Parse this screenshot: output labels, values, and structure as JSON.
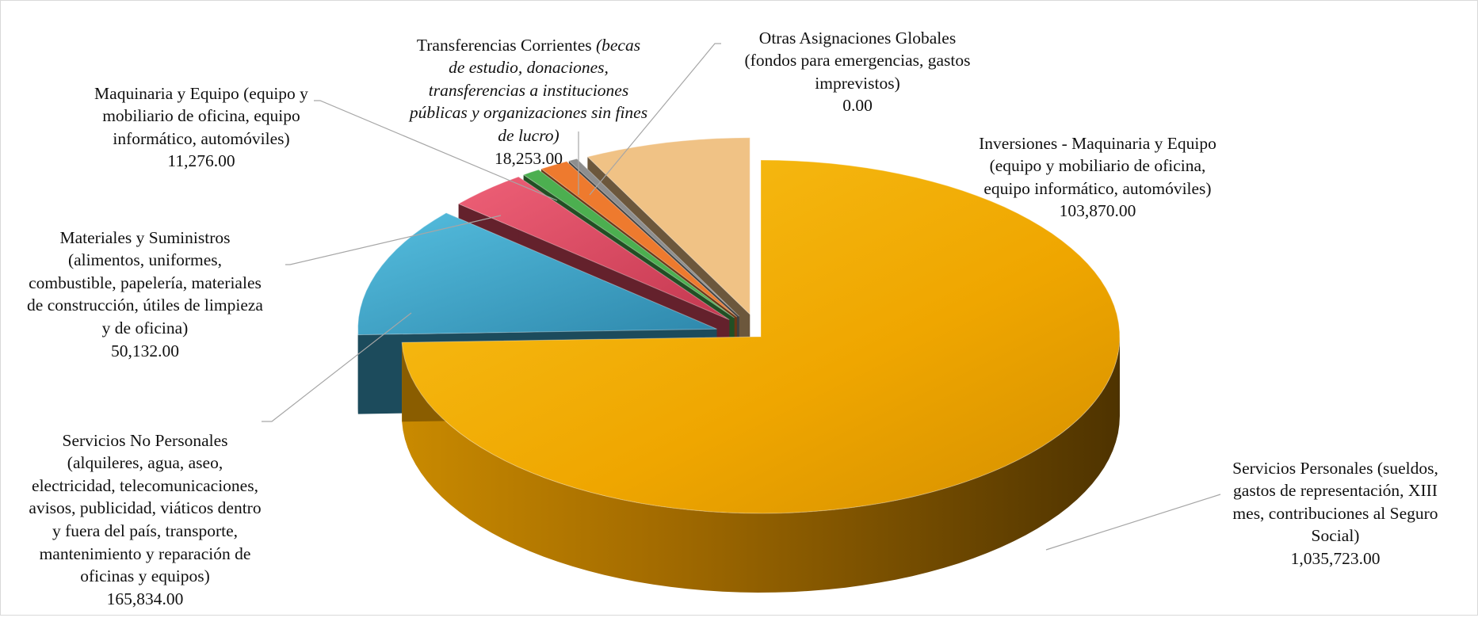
{
  "chart_data": {
    "type": "pie",
    "title": "",
    "exploded": true,
    "three_d": true,
    "legend": "none",
    "slices": [
      {
        "name": "Servicios Personales (sueldos, gastos de representación, XIII mes, contribuciones al Seguro Social)",
        "value_label": "1,035,723.00",
        "value": 1035723,
        "color": "#F2AE00"
      },
      {
        "name": "Servicios No Personales (alquileres, agua, aseo, electricidad, telecomunicaciones, avisos, publicidad, viáticos dentro y fuera del país, transporte, mantenimiento y reparación de oficinas y equipos)",
        "value_label": "165,834.00",
        "value": 165834,
        "color": "#3FA7CC"
      },
      {
        "name": "Materiales y Suministros (alimentos, uniformes, combustible, papelería, materiales de construcción, útiles de limpieza y de oficina)",
        "value_label": "50,132.00",
        "value": 50132,
        "color": "#DE4A62"
      },
      {
        "name": "Maquinaria y Equipo (equipo y mobiliario de oficina, equipo informático, automóviles)",
        "value_label": "11,276.00",
        "value": 11276,
        "color": "#4CAF50"
      },
      {
        "name": "Transferencias Corrientes (becas de estudio, donaciones, transferencias a instituciones públicas y organizaciones sin fines de lucro)",
        "value_label": "18,253.00",
        "value": 18253,
        "color": "#EE7A2E"
      },
      {
        "name": "Otras Asignaciones Globales (fondos para emergencias, gastos imprevistos)",
        "value_label": "0.00",
        "value": 0,
        "color": "#8E8E8E"
      },
      {
        "name": "Inversiones - Maquinaria y Equipo (equipo y mobiliario de oficina, equipo informático, automóviles)",
        "value_label": "103,870.00",
        "value": 103870,
        "color": "#F0C285"
      }
    ]
  },
  "labels": {
    "servicios_personales": {
      "text": "Servicios Personales (sueldos,\ngastos de representación, XIII\nmes, contribuciones al Seguro\nSocial)",
      "value": "1,035,723.00"
    },
    "servicios_no_personales": {
      "text": "Servicios No Personales\n(alquileres, agua, aseo,\nelectricidad, telecomunicaciones,\navisos, publicidad, viáticos dentro\ny fuera del país, transporte,\nmantenimiento y reparación de\noficinas y equipos)",
      "value": "165,834.00"
    },
    "materiales": {
      "text": "Materiales y Suministros\n(alimentos, uniformes,\ncombustible, papelería, materiales\nde construcción, útiles de limpieza\ny de oficina)",
      "value": "50,132.00"
    },
    "maquinaria": {
      "text": "Maquinaria y Equipo (equipo y\nmobiliario de oficina, equipo\ninformático, automóviles)",
      "value": "11,276.00"
    },
    "transferencias": {
      "text_plain": "Transferencias Corrientes ",
      "text_italic": "(becas\nde estudio, donaciones,\ntransferencias a instituciones\npúblicas y organizaciones sin fines\nde lucro)",
      "value": "18,253.00"
    },
    "otras": {
      "text": "Otras Asignaciones Globales\n(fondos para emergencias, gastos\nimprevistos)",
      "value": "0.00"
    },
    "inversiones": {
      "text": "Inversiones - Maquinaria y Equipo\n(equipo y mobiliario de oficina,\nequipo informático, automóviles)",
      "value": "103,870.00"
    }
  }
}
